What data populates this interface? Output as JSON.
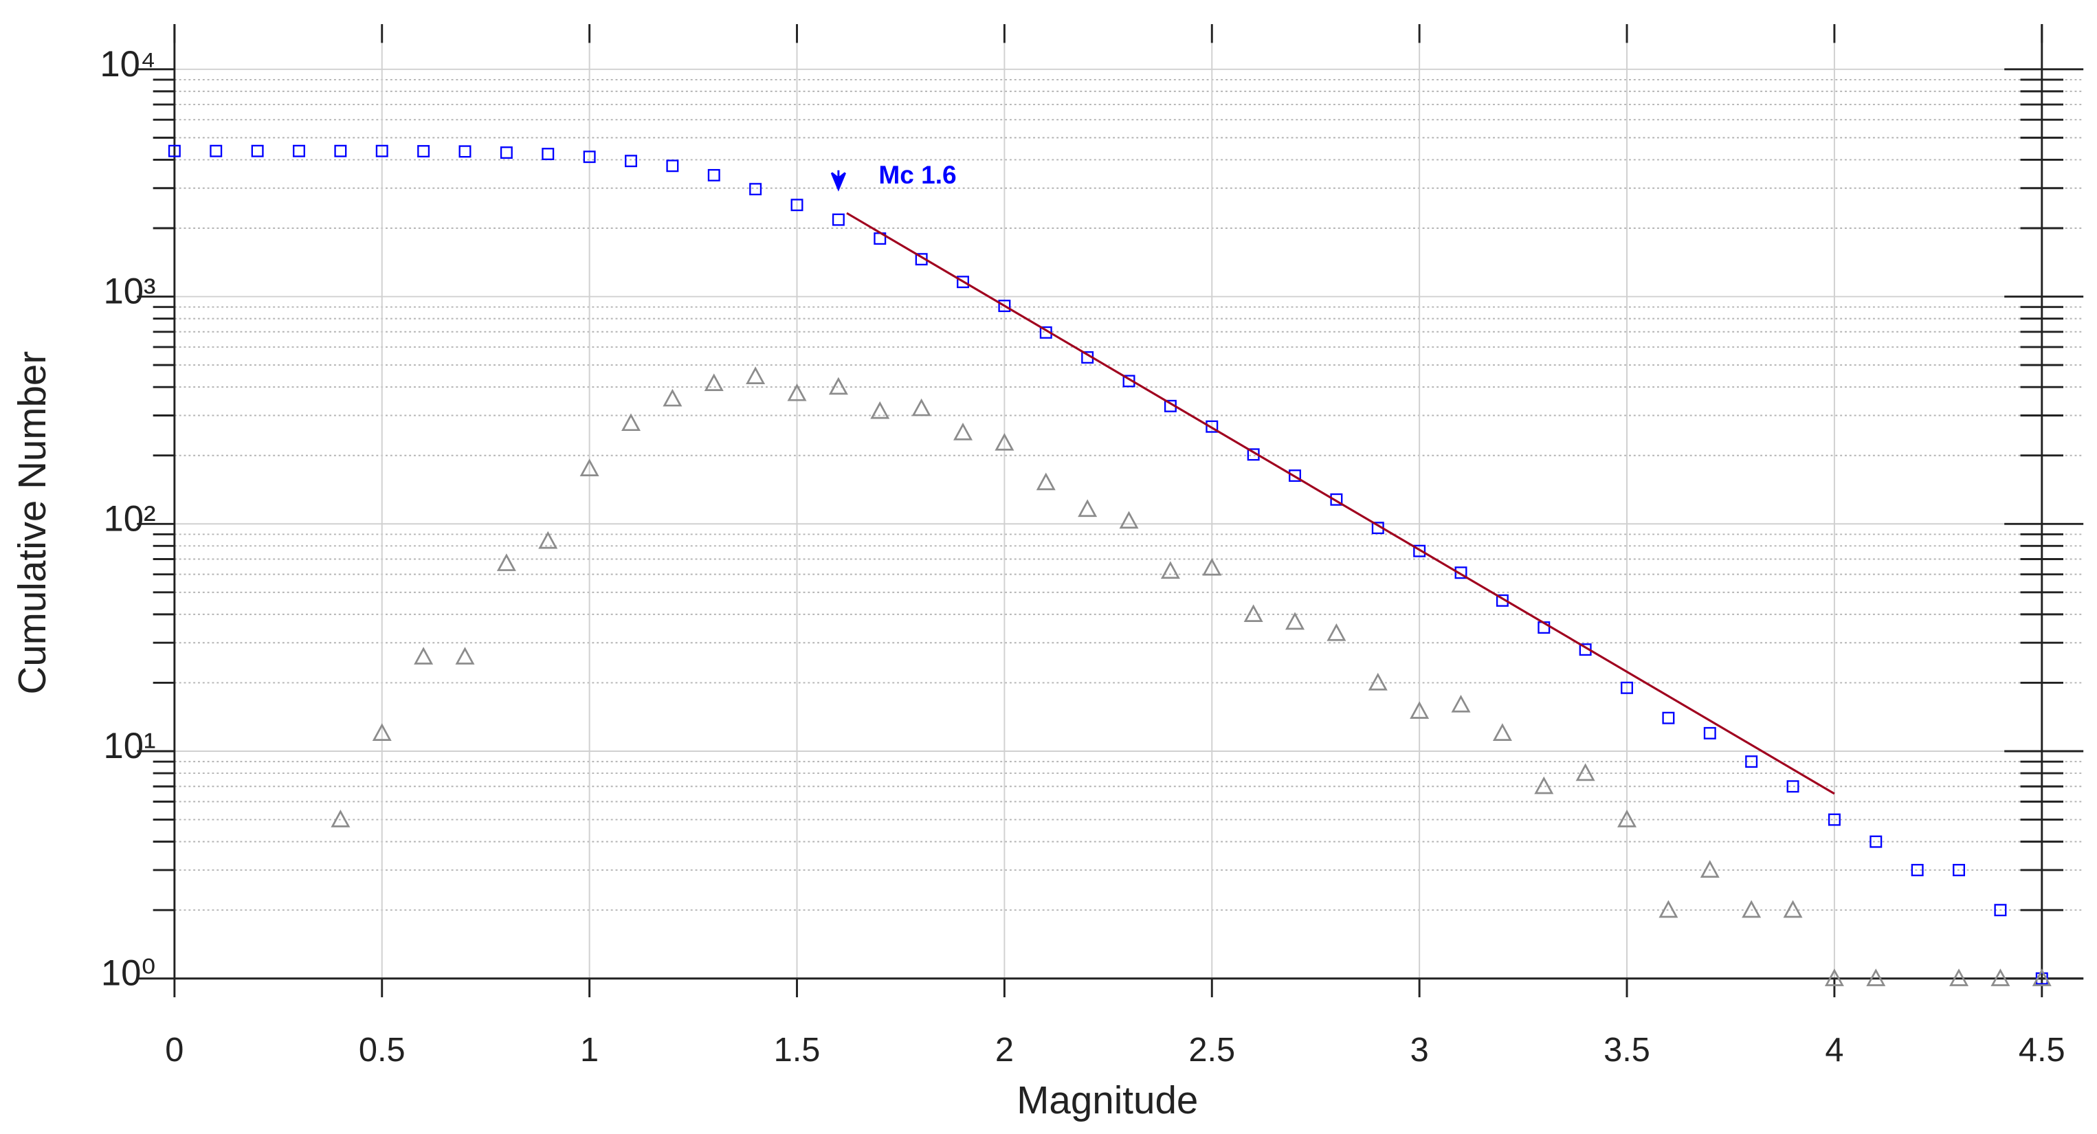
{
  "chart_data": {
    "type": "scatter",
    "xlabel": "Magnitude",
    "ylabel": "Cumulative Number",
    "log_y": true,
    "grid": true,
    "xlim": [
      0,
      4.6
    ],
    "ylim": [
      1,
      15800
    ],
    "xticks": [
      0,
      0.5,
      1,
      1.5,
      2,
      2.5,
      3,
      3.5,
      4,
      4.5
    ],
    "yticks": [
      {
        "value": 1,
        "label": "10⁰"
      },
      {
        "value": 10,
        "label": "10¹"
      },
      {
        "value": 100,
        "label": "10²"
      },
      {
        "value": 1000,
        "label": "10³"
      },
      {
        "value": 10000,
        "label": "10⁴"
      }
    ],
    "yminorticks": [
      2,
      3,
      4,
      5,
      6,
      7,
      8,
      9,
      20,
      30,
      40,
      50,
      60,
      70,
      80,
      90,
      200,
      300,
      400,
      500,
      600,
      700,
      800,
      900,
      2000,
      3000,
      4000,
      5000,
      6000,
      7000,
      8000,
      9000
    ],
    "x": [
      0,
      0.1,
      0.2,
      0.3,
      0.4,
      0.5,
      0.6,
      0.7,
      0.8,
      0.9,
      1,
      1.1,
      1.2,
      1.3,
      1.4,
      1.5,
      1.6,
      1.7,
      1.8,
      1.9,
      2,
      2.1,
      2.2,
      2.3,
      2.4,
      2.5,
      2.6,
      2.7,
      2.8,
      2.9,
      3,
      3.1,
      3.2,
      3.3,
      3.4,
      3.5,
      3.6,
      3.7,
      3.8,
      3.9,
      4,
      4.1,
      4.2,
      4.3,
      4.4,
      4.5
    ],
    "series": [
      {
        "marker": "square",
        "color": "#0000ff",
        "values": [
          4370,
          4370,
          4370,
          4370,
          4370,
          4370,
          4360,
          4350,
          4300,
          4240,
          4120,
          3950,
          3760,
          3420,
          2970,
          2530,
          2180,
          1800,
          1460,
          1160,
          910,
          695,
          540,
          425,
          330,
          268,
          202,
          163,
          128,
          96,
          76,
          61,
          46,
          35,
          28,
          19,
          14,
          12,
          9,
          7,
          5,
          4,
          3,
          3,
          2,
          1
        ]
      },
      {
        "marker": "triangle",
        "color": "#8c8c8c",
        "values": [
          null,
          null,
          null,
          null,
          5,
          12,
          26,
          26,
          67,
          84,
          175,
          277,
          355,
          415,
          445,
          375,
          400,
          313,
          322,
          252,
          227,
          152,
          116,
          103,
          62,
          64,
          40,
          37,
          33,
          20,
          15,
          16,
          12,
          7,
          8,
          5,
          2,
          3,
          2,
          2,
          1,
          1,
          null,
          1,
          1,
          1
        ]
      },
      {
        "marker": "line",
        "color": "#a0001e",
        "x": [
          1.62,
          4.0
        ],
        "values": [
          2330,
          6.5
        ]
      }
    ],
    "annotation": {
      "text": "Mc 1.6",
      "x": 1.6,
      "color": "#0000ff"
    }
  }
}
